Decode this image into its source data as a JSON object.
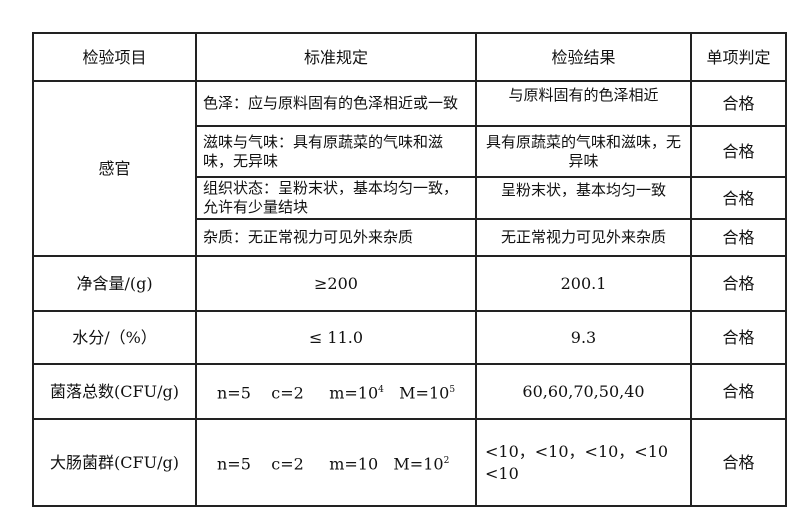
{
  "headers": [
    "检验项目",
    "标准规定",
    "检验结果",
    "单项判定"
  ],
  "sensory": {
    "item": "感官",
    "rows": [
      {
        "standard": "色泽：应与原料固有的色泽相近或一致",
        "result": "与原料固有的色泽相近",
        "verdict": "合格"
      },
      {
        "standard": "滋味与气味：具有原蔬菜的气味和滋味，无异味",
        "result": "具有原蔬菜的气味和滋味，无异味",
        "verdict": "合格"
      },
      {
        "standard": "组织状态：呈粉末状，基本均匀一致，允许有少量结块",
        "result": "呈粉末状，基本均匀一致",
        "verdict": "合格"
      },
      {
        "standard": "杂质：无正常视力可见外来杂质",
        "result": "无正常视力可见外来杂质",
        "verdict": "合格"
      }
    ]
  },
  "rows": [
    {
      "item": "净含量/(g)",
      "standard": "≥200",
      "result": "200.1",
      "verdict": "合格"
    },
    {
      "item": "水分/（%）",
      "standard": "≤ 11.0",
      "result": "9.3",
      "verdict": "合格"
    }
  ],
  "colony": {
    "item": "菌落总数(CFU/g)",
    "n": "n=5",
    "c": "c=2",
    "m": "m=10",
    "m_exp": "4",
    "M": "M=10",
    "M_exp": "5",
    "result": "60,60,70,50,40",
    "verdict": "合格"
  },
  "coliform": {
    "item": "大肠菌群(CFU/g)",
    "n": "n=5",
    "c": "c=2",
    "m": "m=10",
    "M": "M=10",
    "M_exp": "2",
    "result": "<10，<10，<10，<10 <10",
    "verdict": "合格"
  }
}
